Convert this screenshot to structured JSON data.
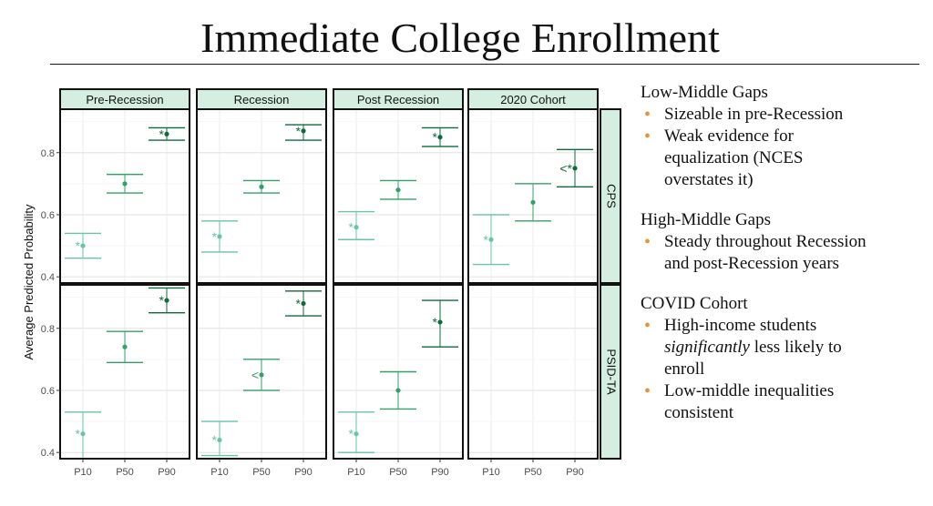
{
  "title": "Immediate College Enrollment",
  "chart_data": {
    "type": "scatter",
    "subtype": "point-range faceted",
    "ylabel": "Average Predicted Probability",
    "xlabel": "",
    "categories": [
      "P10",
      "P50",
      "P90"
    ],
    "columns": [
      "Pre-Recession",
      "Recession",
      "Post Recession",
      "2020 Cohort"
    ],
    "rows": [
      "CPS",
      "PSID-TA"
    ],
    "y_ticks": [
      "0.4",
      "0.6",
      "0.8"
    ],
    "ylim": [
      0.38,
      0.94
    ],
    "colors": {
      "P10": "#69c5a1",
      "P50": "#33a06a",
      "P90": "#0e6a3a",
      "strip_fill": "#d4efe2"
    },
    "panels": [
      {
        "row": "CPS",
        "column": "Pre-Recession",
        "points": [
          {
            "x": "P10",
            "y": 0.5,
            "lo": 0.46,
            "hi": 0.54,
            "marker": "*"
          },
          {
            "x": "P50",
            "y": 0.7,
            "lo": 0.67,
            "hi": 0.73,
            "marker": ""
          },
          {
            "x": "P90",
            "y": 0.86,
            "lo": 0.84,
            "hi": 0.88,
            "marker": "*"
          }
        ]
      },
      {
        "row": "CPS",
        "column": "Recession",
        "points": [
          {
            "x": "P10",
            "y": 0.53,
            "lo": 0.48,
            "hi": 0.58,
            "marker": "*"
          },
          {
            "x": "P50",
            "y": 0.69,
            "lo": 0.67,
            "hi": 0.71,
            "marker": ""
          },
          {
            "x": "P90",
            "y": 0.87,
            "lo": 0.84,
            "hi": 0.89,
            "marker": "*"
          }
        ]
      },
      {
        "row": "CPS",
        "column": "Post Recession",
        "points": [
          {
            "x": "P10",
            "y": 0.56,
            "lo": 0.52,
            "hi": 0.61,
            "marker": "*"
          },
          {
            "x": "P50",
            "y": 0.68,
            "lo": 0.65,
            "hi": 0.71,
            "marker": ""
          },
          {
            "x": "P90",
            "y": 0.85,
            "lo": 0.82,
            "hi": 0.88,
            "marker": "*"
          }
        ]
      },
      {
        "row": "CPS",
        "column": "2020 Cohort",
        "points": [
          {
            "x": "P10",
            "y": 0.52,
            "lo": 0.44,
            "hi": 0.6,
            "marker": "*"
          },
          {
            "x": "P50",
            "y": 0.64,
            "lo": 0.58,
            "hi": 0.7,
            "marker": ""
          },
          {
            "x": "P90",
            "y": 0.75,
            "lo": 0.69,
            "hi": 0.81,
            "marker": "<*"
          }
        ]
      },
      {
        "row": "PSID-TA",
        "column": "Pre-Recession",
        "points": [
          {
            "x": "P10",
            "y": 0.46,
            "lo": 0.38,
            "hi": 0.53,
            "marker": "*"
          },
          {
            "x": "P50",
            "y": 0.74,
            "lo": 0.69,
            "hi": 0.79,
            "marker": ""
          },
          {
            "x": "P90",
            "y": 0.89,
            "lo": 0.85,
            "hi": 0.93,
            "marker": "*"
          }
        ]
      },
      {
        "row": "PSID-TA",
        "column": "Recession",
        "points": [
          {
            "x": "P10",
            "y": 0.44,
            "lo": 0.39,
            "hi": 0.5,
            "marker": "*"
          },
          {
            "x": "P50",
            "y": 0.65,
            "lo": 0.6,
            "hi": 0.7,
            "marker": "<"
          },
          {
            "x": "P90",
            "y": 0.88,
            "lo": 0.84,
            "hi": 0.92,
            "marker": "*"
          }
        ]
      },
      {
        "row": "PSID-TA",
        "column": "Post Recession",
        "points": [
          {
            "x": "P10",
            "y": 0.46,
            "lo": 0.4,
            "hi": 0.53,
            "marker": "*"
          },
          {
            "x": "P50",
            "y": 0.6,
            "lo": 0.54,
            "hi": 0.66,
            "marker": ""
          },
          {
            "x": "P90",
            "y": 0.82,
            "lo": 0.74,
            "hi": 0.89,
            "marker": "*"
          }
        ]
      },
      {
        "row": "PSID-TA",
        "column": "2020 Cohort",
        "points": []
      }
    ]
  },
  "notes": {
    "sections": [
      {
        "heading": "Low-Middle Gaps",
        "bullets": [
          [
            "Sizeable in pre-Recession"
          ],
          [
            "Weak evidence for",
            "equalization (NCES",
            "overstates it)"
          ]
        ]
      },
      {
        "heading": "High-Middle Gaps",
        "bullets": [
          [
            "Steady throughout Recession",
            "and post-Recession years"
          ]
        ]
      },
      {
        "heading": "COVID Cohort",
        "bullets": [
          [
            "High-income students",
            "significantly less likely to",
            "enroll"
          ],
          [
            "Low-middle inequalities",
            "consistent"
          ]
        ]
      }
    ]
  }
}
